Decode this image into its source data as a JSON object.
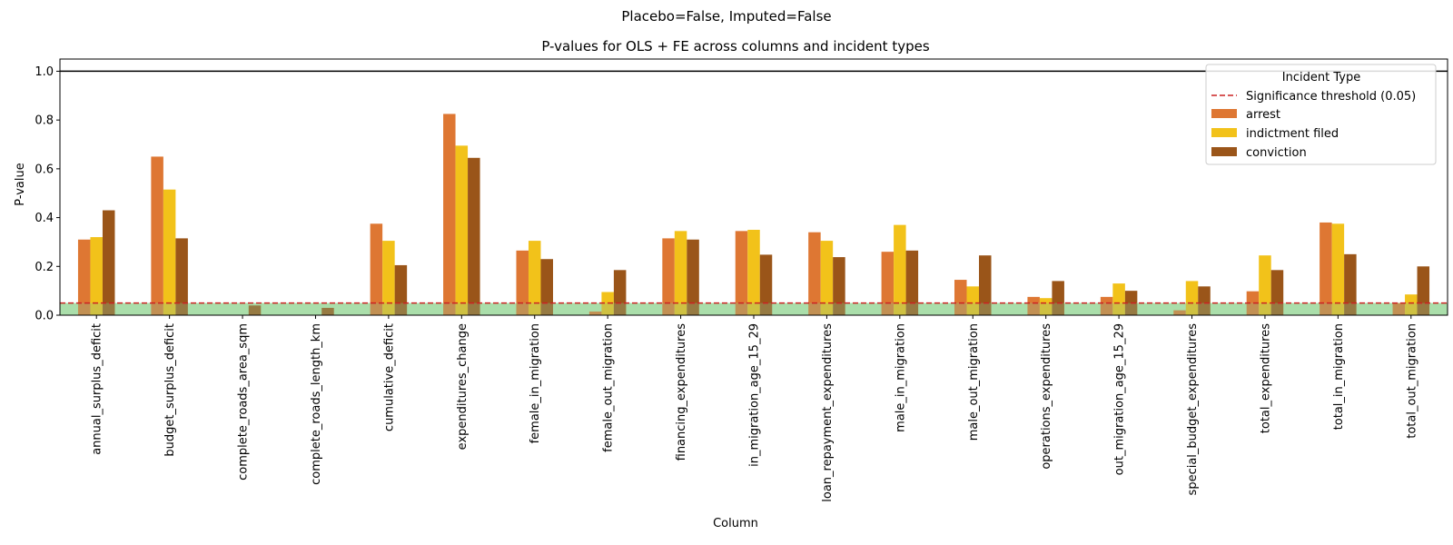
{
  "suptitle": "Placebo=False, Imputed=False",
  "chart_data": {
    "type": "bar",
    "title": "P-values for OLS + FE across columns and incident types",
    "xlabel": "Column",
    "ylabel": "P-value",
    "ylim": [
      0,
      1.05
    ],
    "yticks": [
      "0.0",
      "0.2",
      "0.4",
      "0.6",
      "0.8",
      "1.0"
    ],
    "categories": [
      "annual_surplus_deficit",
      "budget_surplus_deficit",
      "complete_roads_area_sqm",
      "complete_roads_length_km",
      "cumulative_deficit",
      "expenditures_change",
      "female_in_migration",
      "female_out_migration",
      "financing_expenditures",
      "in_migration_age_15_29",
      "loan_repayment_expenditures",
      "male_in_migration",
      "male_out_migration",
      "operations_expenditures",
      "out_migration_age_15_29",
      "special_budget_expenditures",
      "total_expenditures",
      "total_in_migration",
      "total_out_migration"
    ],
    "series": [
      {
        "name": "arrest",
        "color": "#de7733",
        "values": [
          0.31,
          0.65,
          null,
          null,
          0.375,
          0.825,
          0.265,
          0.015,
          0.315,
          0.345,
          0.34,
          0.26,
          0.145,
          0.075,
          0.075,
          0.02,
          0.098,
          0.38,
          0.05
        ]
      },
      {
        "name": "indictment filed",
        "color": "#f2c21a",
        "values": [
          0.32,
          0.515,
          null,
          null,
          0.305,
          0.695,
          0.305,
          0.095,
          0.345,
          0.35,
          0.305,
          0.37,
          0.118,
          0.07,
          0.13,
          0.14,
          0.245,
          0.375,
          0.085
        ]
      },
      {
        "name": "conviction",
        "color": "#9a5519",
        "values": [
          0.43,
          0.315,
          0.04,
          0.03,
          0.205,
          0.645,
          0.23,
          0.185,
          0.31,
          0.248,
          0.238,
          0.265,
          0.245,
          0.14,
          0.1,
          0.118,
          0.185,
          0.25,
          0.2
        ]
      }
    ],
    "reference_lines": [
      {
        "label": "Significance threshold (0.05)",
        "y": 0.05,
        "style": "dashed",
        "color": "#cc2222"
      },
      {
        "y": 1.0,
        "style": "solid",
        "color": "#000000"
      }
    ],
    "shaded_region": {
      "y_from": 0,
      "y_to": 0.05,
      "color": "#b8efb8"
    },
    "legend": {
      "title": "Incident Type",
      "placement": "top-right",
      "entries": [
        "Significance threshold (0.05)",
        "arrest",
        "indictment filed",
        "conviction"
      ]
    },
    "grid": false
  }
}
